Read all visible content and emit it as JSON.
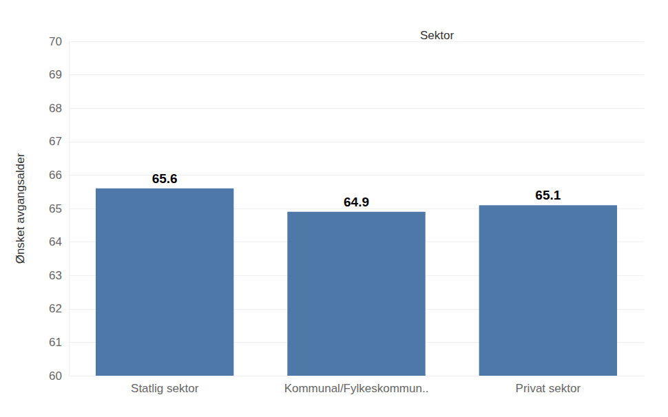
{
  "chart_data": {
    "type": "bar",
    "title": "Sektor",
    "y_label": "Ønsket avgangsalder",
    "categories": [
      "Statlig sektor",
      "Kommunal/Fylkeskommun..",
      "Privat sektor"
    ],
    "values": [
      65.6,
      64.9,
      65.1
    ],
    "color": "#4e78a8",
    "ylim": [
      60,
      70
    ],
    "yticks": [
      60,
      61,
      62,
      63,
      64,
      65,
      66,
      67,
      68,
      69,
      70
    ],
    "grid": true,
    "data_labels": true
  }
}
